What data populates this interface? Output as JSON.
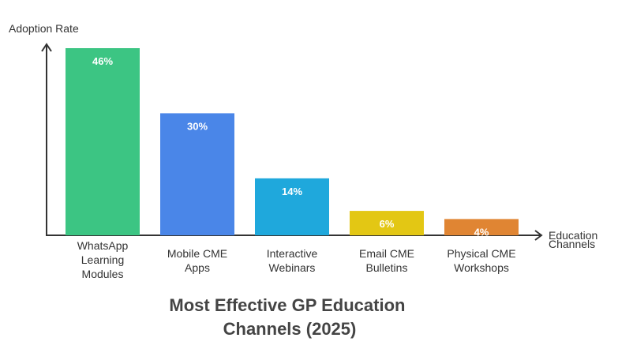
{
  "chart_data": {
    "type": "bar",
    "title": "Most Effective GP Education Channels (2025)",
    "title_lines": [
      "Most Effective GP Education",
      "Channels (2025)"
    ],
    "ylabel": "Adoption Rate",
    "xlabel_lines": [
      "Education",
      "Channels"
    ],
    "categories": [
      "WhatsApp Learning Modules",
      "Mobile CME Apps",
      "Interactive Webinars",
      "Email CME Bulletins",
      "Physical CME Workshops"
    ],
    "category_lines": [
      [
        "WhatsApp",
        "Learning",
        "Modules"
      ],
      [
        "Mobile CME",
        "Apps"
      ],
      [
        "Interactive",
        "Webinars"
      ],
      [
        "Email CME",
        "Bulletins"
      ],
      [
        "Physical CME",
        "Workshops"
      ]
    ],
    "values": [
      46,
      30,
      14,
      6,
      4
    ],
    "value_labels": [
      "46%",
      "30%",
      "14%",
      "6%",
      "4%"
    ],
    "colors": [
      "#3cc583",
      "#4a86e8",
      "#1fa8dc",
      "#e3c714",
      "#e08533"
    ],
    "ylim": [
      0,
      46
    ],
    "grid": false,
    "legend": "none"
  }
}
